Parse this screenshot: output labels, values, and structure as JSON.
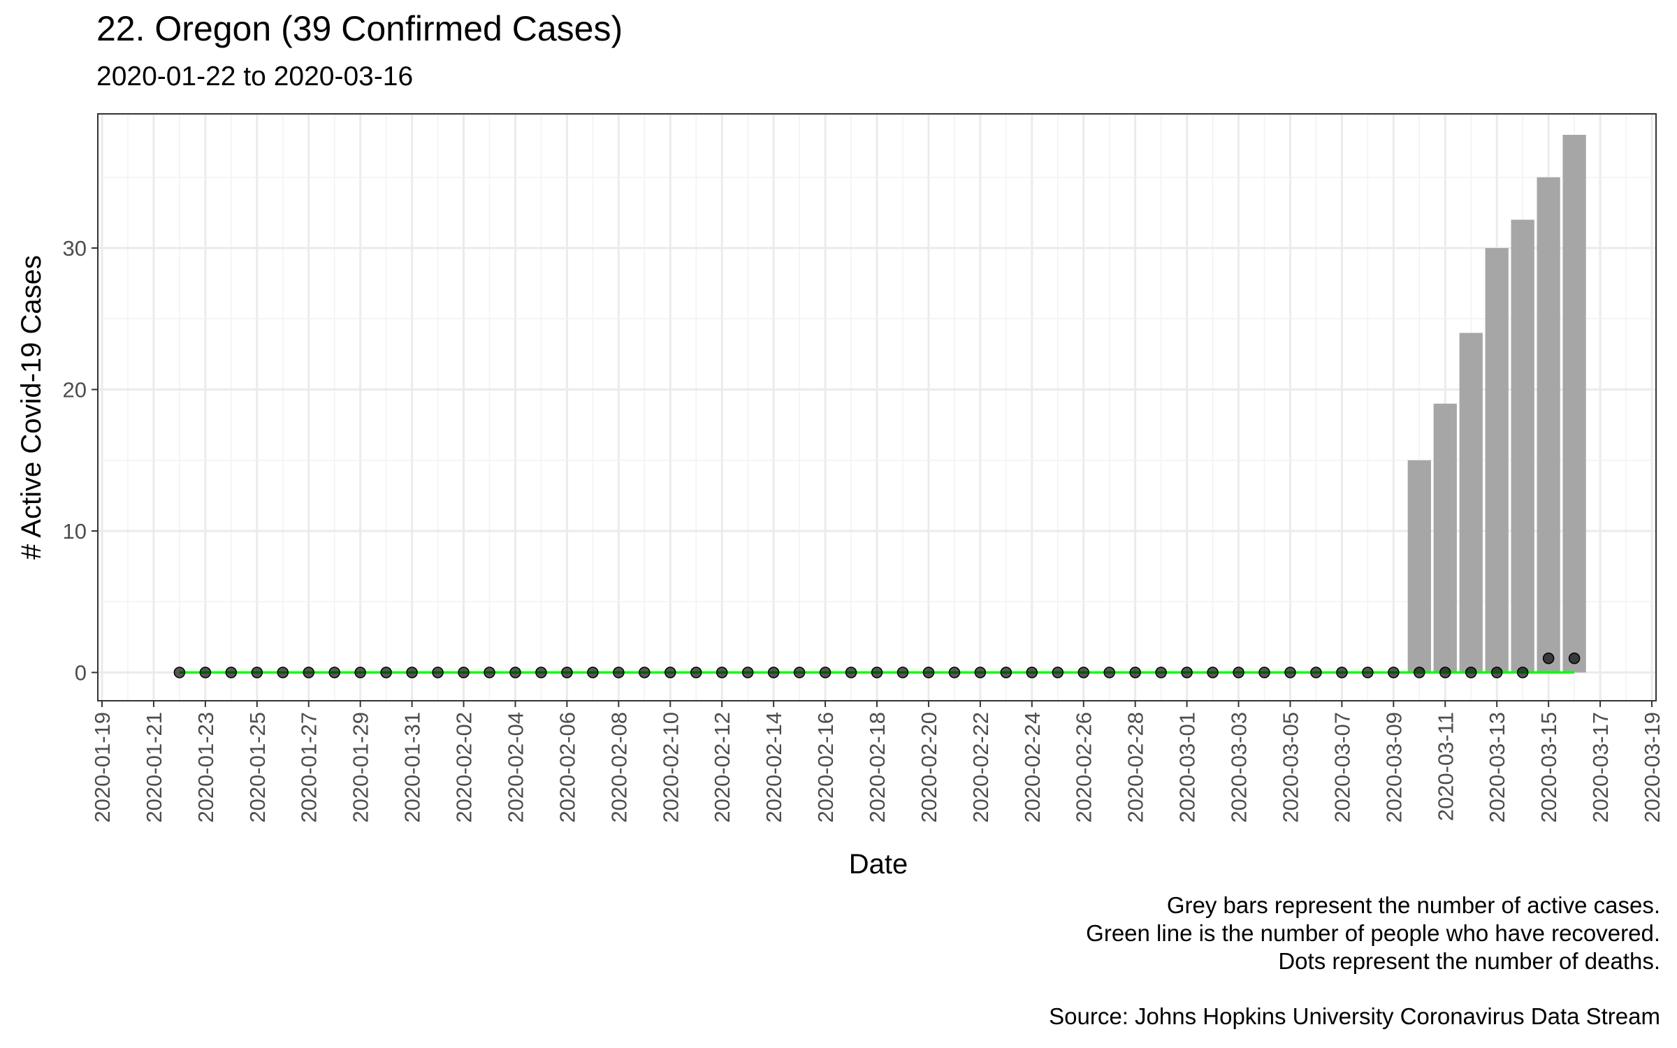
{
  "chart_data": {
    "type": "bar",
    "title": "22. Oregon (39 Confirmed Cases)",
    "subtitle": "2020-01-22 to 2020-03-16",
    "xlabel": "Date",
    "ylabel": "# Active Covid-19 Cases",
    "xlim": [
      "2020-01-19",
      "2020-03-19"
    ],
    "ylim": [
      -2,
      38
    ],
    "x_ticks": [
      "2020-01-19",
      "2020-01-21",
      "2020-01-23",
      "2020-01-25",
      "2020-01-27",
      "2020-01-29",
      "2020-01-31",
      "2020-02-02",
      "2020-02-04",
      "2020-02-06",
      "2020-02-08",
      "2020-02-10",
      "2020-02-12",
      "2020-02-14",
      "2020-02-16",
      "2020-02-18",
      "2020-02-20",
      "2020-02-22",
      "2020-02-24",
      "2020-02-26",
      "2020-02-28",
      "2020-03-01",
      "2020-03-03",
      "2020-03-05",
      "2020-03-07",
      "2020-03-09",
      "2020-03-11",
      "2020-03-13",
      "2020-03-15",
      "2020-03-17",
      "2020-03-19"
    ],
    "y_ticks": [
      0,
      10,
      20,
      30
    ],
    "grid": true,
    "series": [
      {
        "name": "active cases",
        "kind": "bar",
        "color": "#a6a6a6",
        "x": [
          "2020-03-10",
          "2020-03-11",
          "2020-03-12",
          "2020-03-13",
          "2020-03-14",
          "2020-03-15",
          "2020-03-16"
        ],
        "values": [
          15,
          19,
          24,
          30,
          32,
          35,
          38
        ]
      },
      {
        "name": "recovered",
        "kind": "line",
        "color": "#00ff00",
        "x_start": "2020-01-22",
        "x_end": "2020-03-16",
        "values": "all 0"
      },
      {
        "name": "deaths",
        "kind": "points",
        "color": "#000000",
        "x_start": "2020-01-22",
        "x_end": "2020-03-16",
        "nonzero": {
          "2020-03-15": 1,
          "2020-03-16": 1
        }
      }
    ]
  },
  "captions": [
    "Grey bars represent the number of active cases.",
    "Green line is the number of people who have recovered.",
    "Dots represent the number of deaths."
  ],
  "source": "Source: Johns Hopkins University Coronavirus Data Stream"
}
